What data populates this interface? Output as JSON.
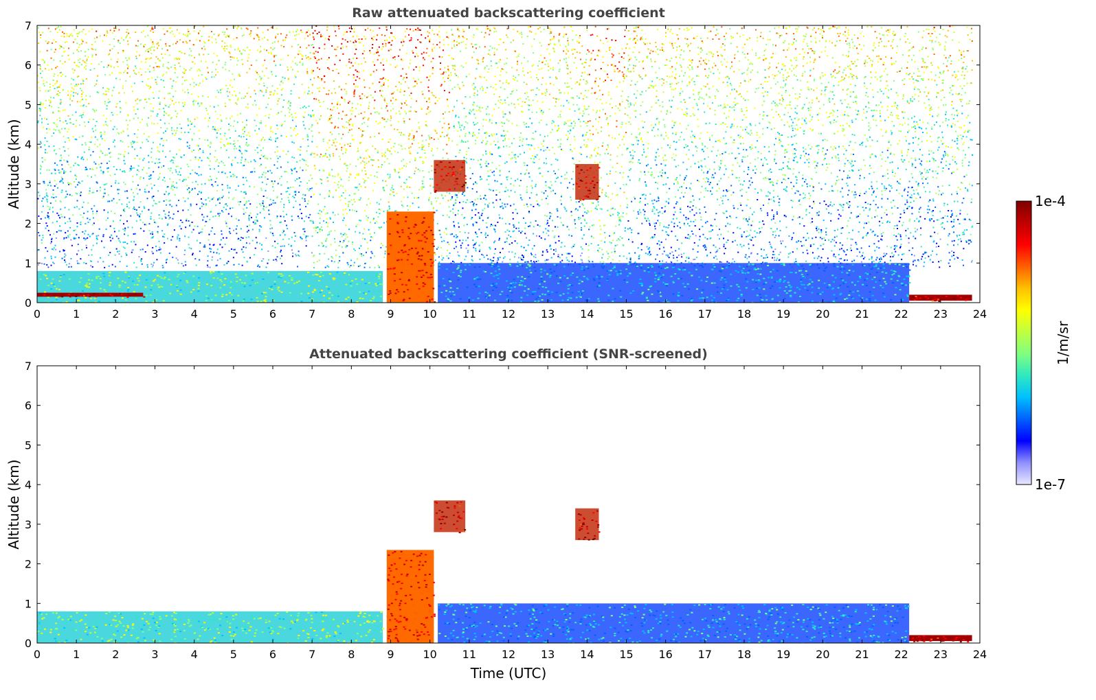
{
  "chart_data": [
    {
      "type": "heatmap",
      "title": "Raw attenuated backscattering coefficient",
      "xlabel": "",
      "ylabel": "Altitude (km)",
      "xlim": [
        0,
        24
      ],
      "ylim": [
        0,
        7
      ],
      "xticks": [
        "0",
        "1",
        "2",
        "3",
        "4",
        "5",
        "6",
        "7",
        "8",
        "9",
        "10",
        "11",
        "12",
        "13",
        "14",
        "15",
        "16",
        "17",
        "18",
        "19",
        "20",
        "21",
        "22",
        "23",
        "24"
      ],
      "yticks": [
        "0",
        "1",
        "2",
        "3",
        "4",
        "5",
        "6",
        "7"
      ],
      "colorscale": "jet",
      "features": [
        {
          "kind": "boundary_layer_aerosol",
          "x": [
            0,
            8.8
          ],
          "y": [
            0,
            0.8
          ]
        },
        {
          "kind": "low_cloud",
          "x": [
            0,
            2.7
          ],
          "y": [
            0.15,
            0.25
          ]
        },
        {
          "kind": "thick_cloud",
          "x": [
            8.9,
            10.1
          ],
          "y": [
            0,
            2.3
          ]
        },
        {
          "kind": "mid_cloud",
          "x": [
            10.1,
            10.9
          ],
          "y": [
            2.8,
            3.6
          ]
        },
        {
          "kind": "mid_cloud",
          "x": [
            13.7,
            14.3
          ],
          "y": [
            2.6,
            3.5
          ]
        },
        {
          "kind": "clear_sky_aerosol",
          "x": [
            10.2,
            22.2
          ],
          "y": [
            0,
            1.0
          ]
        },
        {
          "kind": "low_cloud",
          "x": [
            22.2,
            23.8
          ],
          "y": [
            0.05,
            0.2
          ]
        },
        {
          "kind": "noise_region",
          "x": [
            0,
            23.8
          ],
          "y": [
            1.0,
            7.0
          ]
        }
      ]
    },
    {
      "type": "heatmap",
      "title": "Attenuated backscattering coefficient (SNR-screened)",
      "xlabel": "Time (UTC)",
      "ylabel": "Altitude (km)",
      "xlim": [
        0,
        24
      ],
      "ylim": [
        0,
        7
      ],
      "xticks": [
        "0",
        "1",
        "2",
        "3",
        "4",
        "5",
        "6",
        "7",
        "8",
        "9",
        "10",
        "11",
        "12",
        "13",
        "14",
        "15",
        "16",
        "17",
        "18",
        "19",
        "20",
        "21",
        "22",
        "23",
        "24"
      ],
      "yticks": [
        "0",
        "1",
        "2",
        "3",
        "4",
        "5",
        "6",
        "7"
      ],
      "colorscale": "jet",
      "features": [
        {
          "kind": "boundary_layer_aerosol",
          "x": [
            0,
            8.8
          ],
          "y": [
            0,
            0.8
          ]
        },
        {
          "kind": "thick_cloud",
          "x": [
            8.9,
            10.1
          ],
          "y": [
            0,
            2.35
          ]
        },
        {
          "kind": "mid_cloud",
          "x": [
            10.1,
            10.9
          ],
          "y": [
            2.8,
            3.6
          ]
        },
        {
          "kind": "mid_cloud",
          "x": [
            13.7,
            14.3
          ],
          "y": [
            2.6,
            3.4
          ]
        },
        {
          "kind": "clear_sky_aerosol",
          "x": [
            10.2,
            22.2
          ],
          "y": [
            0,
            1.0
          ]
        },
        {
          "kind": "low_cloud",
          "x": [
            22.2,
            23.8
          ],
          "y": [
            0.05,
            0.2
          ]
        }
      ]
    }
  ],
  "colorbar": {
    "label": "1/m/sr",
    "max_label": "1e-4",
    "min_label": "1e-7",
    "range": [
      1e-07,
      0.0001
    ],
    "scale": "log",
    "colors": [
      "#e8e8ff",
      "#9090ff",
      "#0000ff",
      "#0060ff",
      "#00c0ff",
      "#30e8c0",
      "#80ff80",
      "#c0ff40",
      "#ffff00",
      "#ffc000",
      "#ff6000",
      "#ff0000",
      "#c00000",
      "#800000"
    ]
  }
}
